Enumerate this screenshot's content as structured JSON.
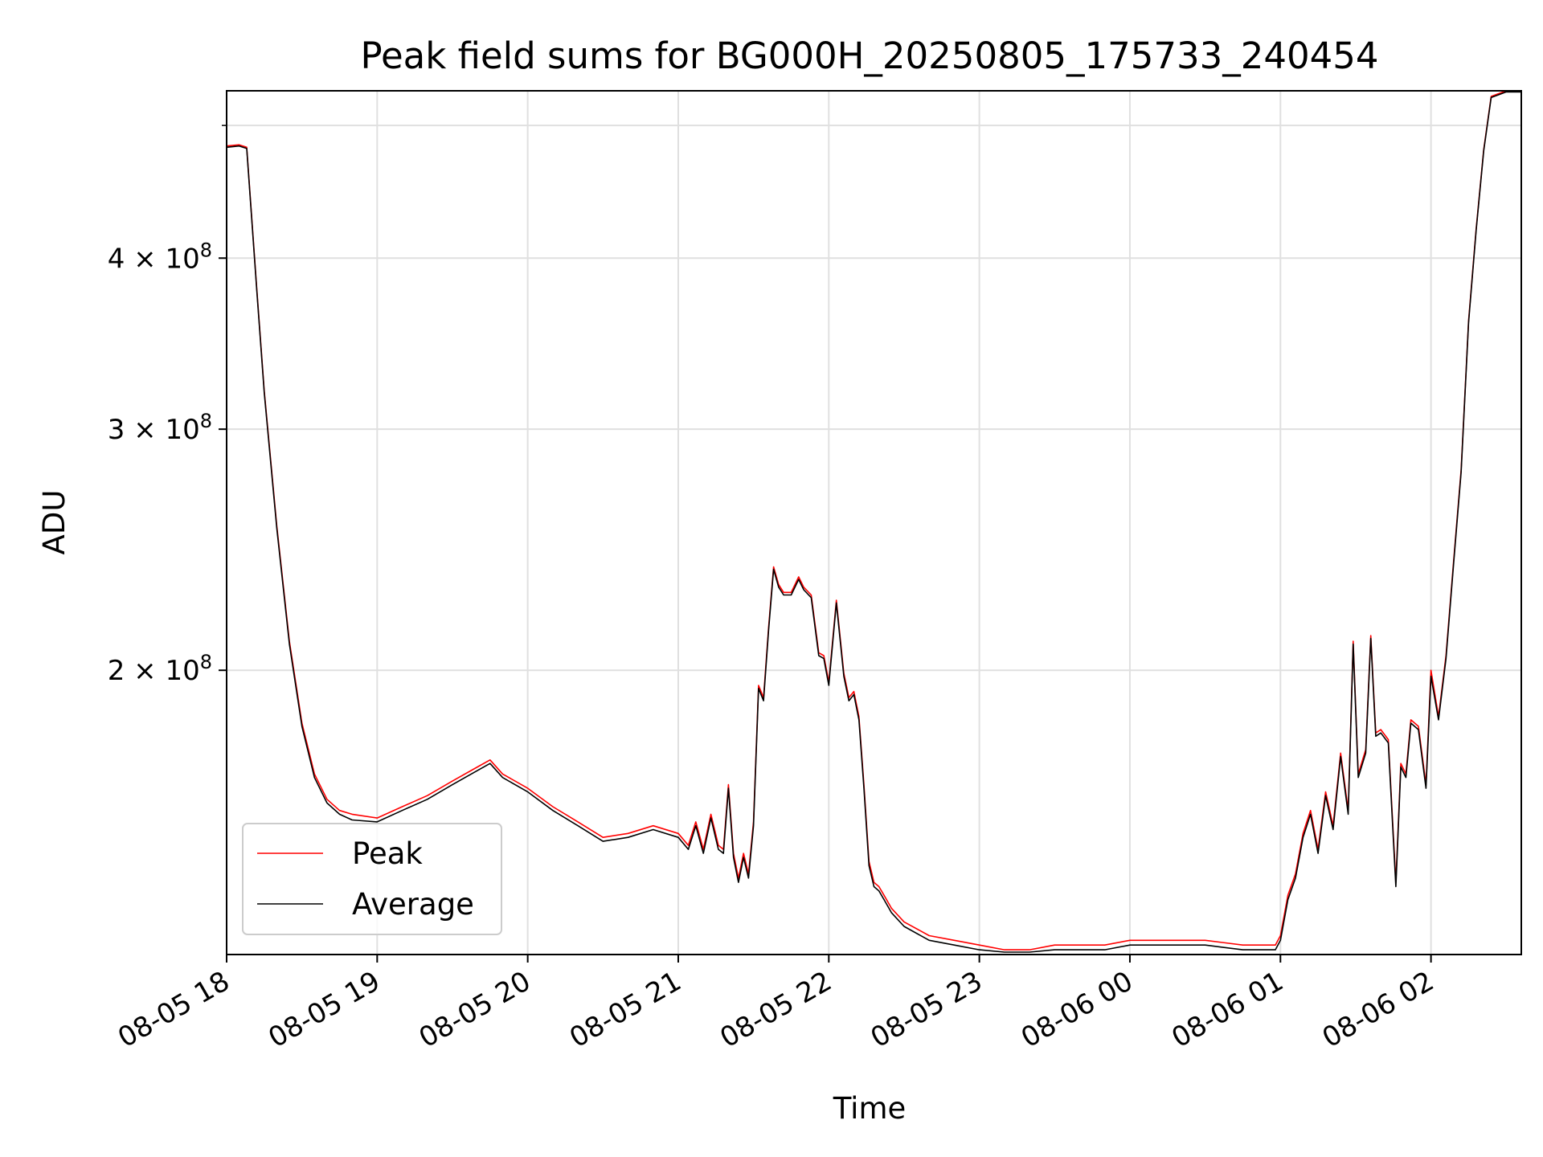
{
  "chart_data": {
    "type": "line",
    "title": "Peak field sums for BG000H_20250805_175733_240454",
    "xlabel": "Time",
    "ylabel": "ADU",
    "y_scale": "log",
    "ylim": [
      124000000,
      530000000
    ],
    "xlim": [
      "2025-08-05 18:00",
      "2025-08-06 02:36"
    ],
    "grid": true,
    "legend_position": "lower-left",
    "x_ticks": [
      "08-05 18",
      "08-05 19",
      "08-05 20",
      "08-05 21",
      "08-05 22",
      "08-05 23",
      "08-06 00",
      "08-06 01",
      "08-06 02"
    ],
    "y_ticks": [
      {
        "mantissa": "2",
        "exponent": "8",
        "value": 200000000
      },
      {
        "mantissa": "3",
        "exponent": "8",
        "value": 300000000
      },
      {
        "mantissa": "4",
        "exponent": "8",
        "value": 400000000
      }
    ],
    "y_ticks_minor": [
      500000000
    ],
    "series": [
      {
        "name": "Peak",
        "color": "#ff0000",
        "x": [
          "2025-08-05 18:00",
          "2025-08-05 18:05",
          "2025-08-05 18:08",
          "2025-08-05 18:12",
          "2025-08-05 18:15",
          "2025-08-05 18:20",
          "2025-08-05 18:25",
          "2025-08-05 18:30",
          "2025-08-05 18:35",
          "2025-08-05 18:40",
          "2025-08-05 18:45",
          "2025-08-05 18:50",
          "2025-08-05 19:00",
          "2025-08-05 19:10",
          "2025-08-05 19:20",
          "2025-08-05 19:30",
          "2025-08-05 19:40",
          "2025-08-05 19:45",
          "2025-08-05 19:50",
          "2025-08-05 20:00",
          "2025-08-05 20:10",
          "2025-08-05 20:20",
          "2025-08-05 20:30",
          "2025-08-05 20:40",
          "2025-08-05 20:50",
          "2025-08-05 21:00",
          "2025-08-05 21:04",
          "2025-08-05 21:07",
          "2025-08-05 21:10",
          "2025-08-05 21:13",
          "2025-08-05 21:16",
          "2025-08-05 21:18",
          "2025-08-05 21:20",
          "2025-08-05 21:22",
          "2025-08-05 21:24",
          "2025-08-05 21:26",
          "2025-08-05 21:28",
          "2025-08-05 21:30",
          "2025-08-05 21:32",
          "2025-08-05 21:34",
          "2025-08-05 21:36",
          "2025-08-05 21:38",
          "2025-08-05 21:40",
          "2025-08-05 21:42",
          "2025-08-05 21:45",
          "2025-08-05 21:48",
          "2025-08-05 21:50",
          "2025-08-05 21:53",
          "2025-08-05 21:56",
          "2025-08-05 21:58",
          "2025-08-05 22:00",
          "2025-08-05 22:03",
          "2025-08-05 22:06",
          "2025-08-05 22:08",
          "2025-08-05 22:10",
          "2025-08-05 22:12",
          "2025-08-05 22:14",
          "2025-08-05 22:16",
          "2025-08-05 22:18",
          "2025-08-05 22:20",
          "2025-08-05 22:22",
          "2025-08-05 22:25",
          "2025-08-05 22:30",
          "2025-08-05 22:40",
          "2025-08-05 22:50",
          "2025-08-05 23:00",
          "2025-08-05 23:10",
          "2025-08-05 23:20",
          "2025-08-05 23:30",
          "2025-08-05 23:40",
          "2025-08-05 23:50",
          "2025-08-06 00:00",
          "2025-08-06 00:15",
          "2025-08-06 00:30",
          "2025-08-06 00:45",
          "2025-08-06 00:58",
          "2025-08-06 01:00",
          "2025-08-06 01:03",
          "2025-08-06 01:06",
          "2025-08-06 01:09",
          "2025-08-06 01:12",
          "2025-08-06 01:15",
          "2025-08-06 01:18",
          "2025-08-06 01:21",
          "2025-08-06 01:24",
          "2025-08-06 01:27",
          "2025-08-06 01:29",
          "2025-08-06 01:31",
          "2025-08-06 01:34",
          "2025-08-06 01:36",
          "2025-08-06 01:38",
          "2025-08-06 01:40",
          "2025-08-06 01:43",
          "2025-08-06 01:46",
          "2025-08-06 01:48",
          "2025-08-06 01:50",
          "2025-08-06 01:52",
          "2025-08-06 01:55",
          "2025-08-06 01:58",
          "2025-08-06 02:00",
          "2025-08-06 02:03",
          "2025-08-06 02:06",
          "2025-08-06 02:09",
          "2025-08-06 02:12",
          "2025-08-06 02:15",
          "2025-08-06 02:18",
          "2025-08-06 02:21",
          "2025-08-06 02:24",
          "2025-08-06 02:30",
          "2025-08-06 02:36"
        ],
        "y": [
          483000000,
          484000000,
          482000000,
          380000000,
          320000000,
          255000000,
          210000000,
          183000000,
          168000000,
          161000000,
          158000000,
          157000000,
          156000000,
          159000000,
          162000000,
          166000000,
          170000000,
          172000000,
          168000000,
          164000000,
          159000000,
          155000000,
          151000000,
          152000000,
          154000000,
          152000000,
          149000000,
          155000000,
          148000000,
          157000000,
          149000000,
          148000000,
          165000000,
          147000000,
          141000000,
          147000000,
          142000000,
          155000000,
          195000000,
          191000000,
          215000000,
          238000000,
          231000000,
          228000000,
          228000000,
          234000000,
          230000000,
          227000000,
          206000000,
          205000000,
          196000000,
          225000000,
          199000000,
          191000000,
          193000000,
          185000000,
          165000000,
          145000000,
          140000000,
          139000000,
          137000000,
          134000000,
          131000000,
          128000000,
          127000000,
          126000000,
          125000000,
          125000000,
          126000000,
          126000000,
          126000000,
          127000000,
          127000000,
          127000000,
          126000000,
          126000000,
          128000000,
          137000000,
          142000000,
          152000000,
          158000000,
          148000000,
          163000000,
          154000000,
          174000000,
          158000000,
          210000000,
          168000000,
          175000000,
          212000000,
          180000000,
          181000000,
          178000000,
          140000000,
          171000000,
          168000000,
          184000000,
          182000000,
          165000000,
          200000000,
          185000000,
          205000000,
          240000000,
          280000000,
          360000000,
          420000000,
          480000000,
          525000000,
          530000000,
          530000000
        ]
      },
      {
        "name": "Average",
        "color": "#000000",
        "x": [
          "2025-08-05 18:00",
          "2025-08-05 18:05",
          "2025-08-05 18:08",
          "2025-08-05 18:12",
          "2025-08-05 18:15",
          "2025-08-05 18:20",
          "2025-08-05 18:25",
          "2025-08-05 18:30",
          "2025-08-05 18:35",
          "2025-08-05 18:40",
          "2025-08-05 18:45",
          "2025-08-05 18:50",
          "2025-08-05 19:00",
          "2025-08-05 19:10",
          "2025-08-05 19:20",
          "2025-08-05 19:30",
          "2025-08-05 19:40",
          "2025-08-05 19:45",
          "2025-08-05 19:50",
          "2025-08-05 20:00",
          "2025-08-05 20:10",
          "2025-08-05 20:20",
          "2025-08-05 20:30",
          "2025-08-05 20:40",
          "2025-08-05 20:50",
          "2025-08-05 21:00",
          "2025-08-05 21:04",
          "2025-08-05 21:07",
          "2025-08-05 21:10",
          "2025-08-05 21:13",
          "2025-08-05 21:16",
          "2025-08-05 21:18",
          "2025-08-05 21:20",
          "2025-08-05 21:22",
          "2025-08-05 21:24",
          "2025-08-05 21:26",
          "2025-08-05 21:28",
          "2025-08-05 21:30",
          "2025-08-05 21:32",
          "2025-08-05 21:34",
          "2025-08-05 21:36",
          "2025-08-05 21:38",
          "2025-08-05 21:40",
          "2025-08-05 21:42",
          "2025-08-05 21:45",
          "2025-08-05 21:48",
          "2025-08-05 21:50",
          "2025-08-05 21:53",
          "2025-08-05 21:56",
          "2025-08-05 21:58",
          "2025-08-05 22:00",
          "2025-08-05 22:03",
          "2025-08-05 22:06",
          "2025-08-05 22:08",
          "2025-08-05 22:10",
          "2025-08-05 22:12",
          "2025-08-05 22:14",
          "2025-08-05 22:16",
          "2025-08-05 22:18",
          "2025-08-05 22:20",
          "2025-08-05 22:22",
          "2025-08-05 22:25",
          "2025-08-05 22:30",
          "2025-08-05 22:40",
          "2025-08-05 22:50",
          "2025-08-05 23:00",
          "2025-08-05 23:10",
          "2025-08-05 23:20",
          "2025-08-05 23:30",
          "2025-08-05 23:40",
          "2025-08-05 23:50",
          "2025-08-06 00:00",
          "2025-08-06 00:15",
          "2025-08-06 00:30",
          "2025-08-06 00:45",
          "2025-08-06 00:58",
          "2025-08-06 01:00",
          "2025-08-06 01:03",
          "2025-08-06 01:06",
          "2025-08-06 01:09",
          "2025-08-06 01:12",
          "2025-08-06 01:15",
          "2025-08-06 01:18",
          "2025-08-06 01:21",
          "2025-08-06 01:24",
          "2025-08-06 01:27",
          "2025-08-06 01:29",
          "2025-08-06 01:31",
          "2025-08-06 01:34",
          "2025-08-06 01:36",
          "2025-08-06 01:38",
          "2025-08-06 01:40",
          "2025-08-06 01:43",
          "2025-08-06 01:46",
          "2025-08-06 01:48",
          "2025-08-06 01:50",
          "2025-08-06 01:52",
          "2025-08-06 01:55",
          "2025-08-06 01:58",
          "2025-08-06 02:00",
          "2025-08-06 02:03",
          "2025-08-06 02:06",
          "2025-08-06 02:09",
          "2025-08-06 02:12",
          "2025-08-06 02:15",
          "2025-08-06 02:18",
          "2025-08-06 02:21",
          "2025-08-06 02:24",
          "2025-08-06 02:30",
          "2025-08-06 02:36"
        ],
        "y": [
          482000000,
          483000000,
          481000000,
          379000000,
          319000000,
          254000000,
          209000000,
          182000000,
          167000000,
          160000000,
          157000000,
          155500000,
          155000000,
          158000000,
          161000000,
          165000000,
          169000000,
          171000000,
          167000000,
          163000000,
          158000000,
          154000000,
          150000000,
          151000000,
          153000000,
          151000000,
          148000000,
          154000000,
          147000000,
          156000000,
          148000000,
          147000000,
          164000000,
          146000000,
          140000000,
          146000000,
          141000000,
          154000000,
          194000000,
          190000000,
          214000000,
          237000000,
          230000000,
          227000000,
          227000000,
          233000000,
          229000000,
          226000000,
          205000000,
          204000000,
          195000000,
          224000000,
          198000000,
          190000000,
          192000000,
          184000000,
          164000000,
          144000000,
          139000000,
          138000000,
          136000000,
          133000000,
          130000000,
          127000000,
          126000000,
          125000000,
          124500000,
          124500000,
          125000000,
          125000000,
          125000000,
          126000000,
          126000000,
          126000000,
          125000000,
          125000000,
          127000000,
          136000000,
          141000000,
          151000000,
          157000000,
          147000000,
          162000000,
          153000000,
          173000000,
          157000000,
          209000000,
          167000000,
          174000000,
          211000000,
          179000000,
          180000000,
          177000000,
          139000000,
          170000000,
          167000000,
          183000000,
          181000000,
          164000000,
          198000000,
          184000000,
          204000000,
          239000000,
          279000000,
          359000000,
          419000000,
          479000000,
          524000000,
          529000000,
          529000000
        ]
      }
    ]
  }
}
